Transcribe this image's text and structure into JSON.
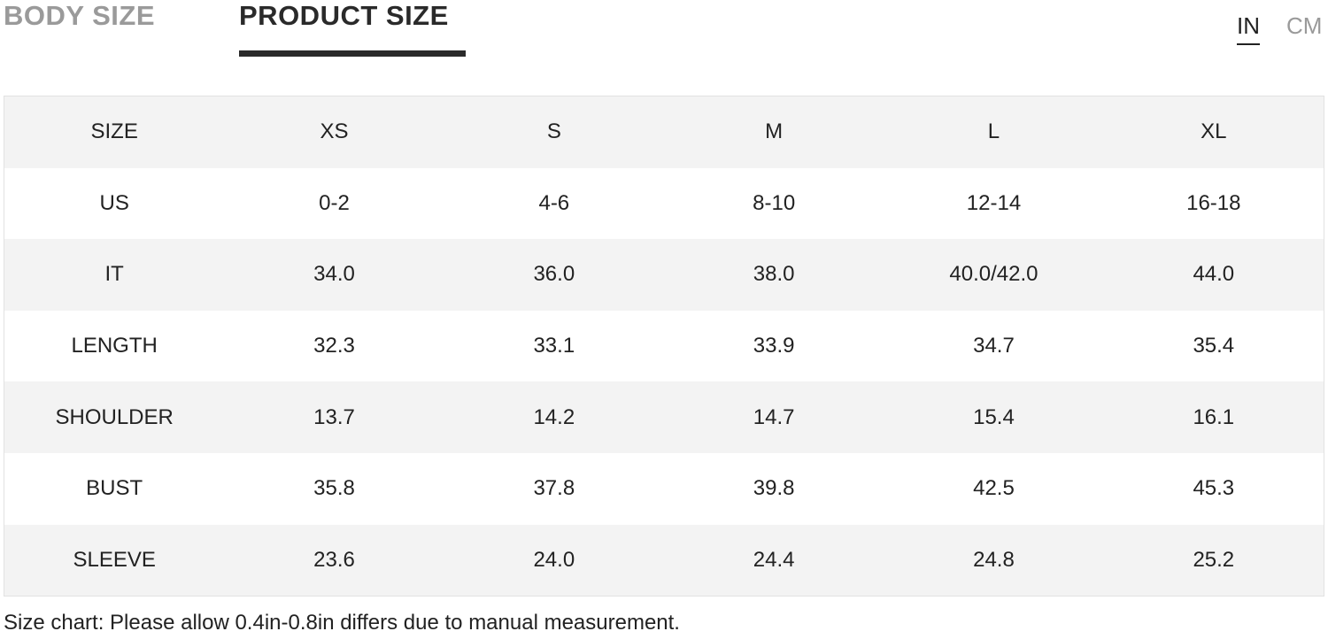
{
  "tabs": [
    "BODY SIZE",
    "PRODUCT SIZE"
  ],
  "active_tab": "PRODUCT SIZE",
  "units": [
    "IN",
    "CM"
  ],
  "active_unit": "IN",
  "table": {
    "header": [
      "SIZE",
      "XS",
      "S",
      "M",
      "L",
      "XL"
    ],
    "rows": [
      [
        "US",
        "0-2",
        "4-6",
        "8-10",
        "12-14",
        "16-18"
      ],
      [
        "IT",
        "34.0",
        "36.0",
        "38.0",
        "40.0/42.0",
        "44.0"
      ],
      [
        "LENGTH",
        "32.3",
        "33.1",
        "33.9",
        "34.7",
        "35.4"
      ],
      [
        "SHOULDER",
        "13.7",
        "14.2",
        "14.7",
        "15.4",
        "16.1"
      ],
      [
        "BUST",
        "35.8",
        "37.8",
        "39.8",
        "42.5",
        "45.3"
      ],
      [
        "SLEEVE",
        "23.6",
        "24.0",
        "24.4",
        "24.8",
        "25.2"
      ]
    ]
  },
  "note": "Size chart: Please allow 0.4in-0.8in differs due to manual measurement."
}
